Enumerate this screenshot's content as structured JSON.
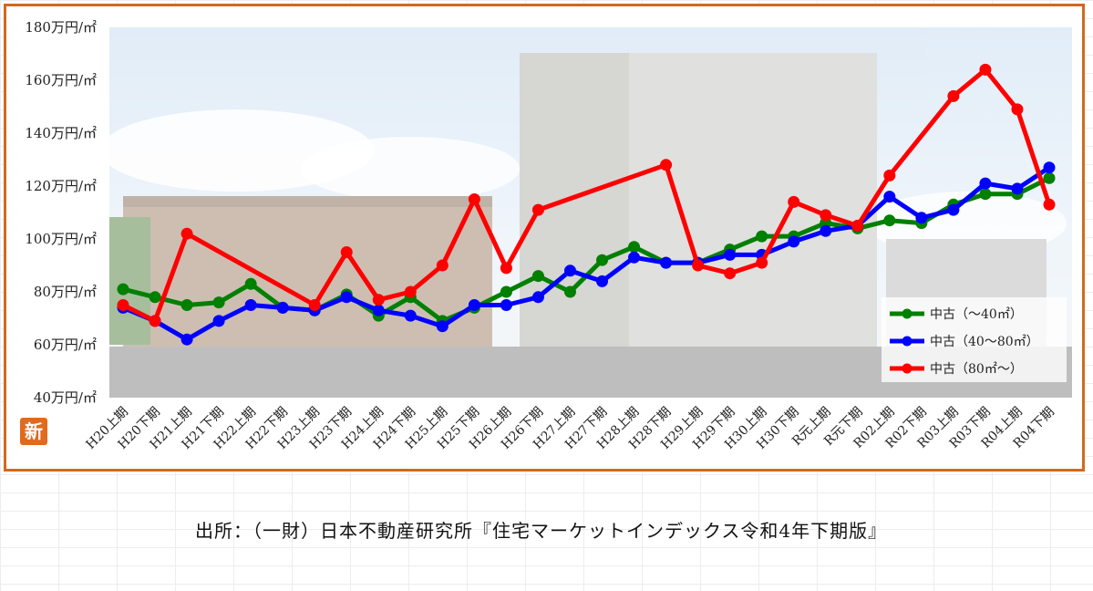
{
  "badge": "新",
  "source_text": "出所：（一財）日本不動産研究所『住宅マーケットインデックス令和4年下期版』",
  "chart_data": {
    "type": "line",
    "ylim": [
      40,
      180
    ],
    "yticks": [
      "40万円/㎡",
      "60万円/㎡",
      "80万円/㎡",
      "100万円/㎡",
      "120万円/㎡",
      "140万円/㎡",
      "160万円/㎡",
      "180万円/㎡"
    ],
    "ytick_values": [
      40,
      60,
      80,
      100,
      120,
      140,
      160,
      180
    ],
    "categories": [
      "H20上期",
      "H20下期",
      "H21上期",
      "H21下期",
      "H22上期",
      "H22下期",
      "H23上期",
      "H23下期",
      "H24上期",
      "H24下期",
      "H25上期",
      "H25下期",
      "H26上期",
      "H26下期",
      "H27上期",
      "H27下期",
      "H28上期",
      "H28下期",
      "H29上期",
      "H29下期",
      "H30上期",
      "H30下期",
      "R元上期",
      "R元下期",
      "R02上期",
      "R02下期",
      "R03上期",
      "R03下期",
      "R04上期",
      "R04下期"
    ],
    "series": [
      {
        "name": "中古（～40㎡）",
        "color": "#008000",
        "values": [
          81,
          78,
          75,
          76,
          83,
          74,
          73,
          79,
          71,
          78,
          69,
          74,
          80,
          86,
          80,
          92,
          97,
          91,
          91,
          96,
          101,
          101,
          106,
          104,
          107,
          106,
          113,
          117,
          117,
          123
        ]
      },
      {
        "name": "中古（40～80㎡）",
        "color": "#0000ff",
        "values": [
          74,
          69,
          62,
          69,
          75,
          74,
          73,
          78,
          73,
          71,
          67,
          75,
          75,
          78,
          88,
          84,
          93,
          91,
          91,
          94,
          94,
          99,
          103,
          105,
          116,
          108,
          111,
          121,
          119,
          127
        ]
      },
      {
        "name": "中古（80㎡～）",
        "color": "#ff0000",
        "values": [
          75,
          69,
          102,
          null,
          null,
          null,
          75,
          95,
          77,
          80,
          90,
          115,
          89,
          111,
          null,
          null,
          null,
          128,
          90,
          87,
          91,
          114,
          109,
          105,
          124,
          null,
          154,
          164,
          149,
          113
        ]
      }
    ],
    "grid": false,
    "legend_position": "bottom-right"
  }
}
